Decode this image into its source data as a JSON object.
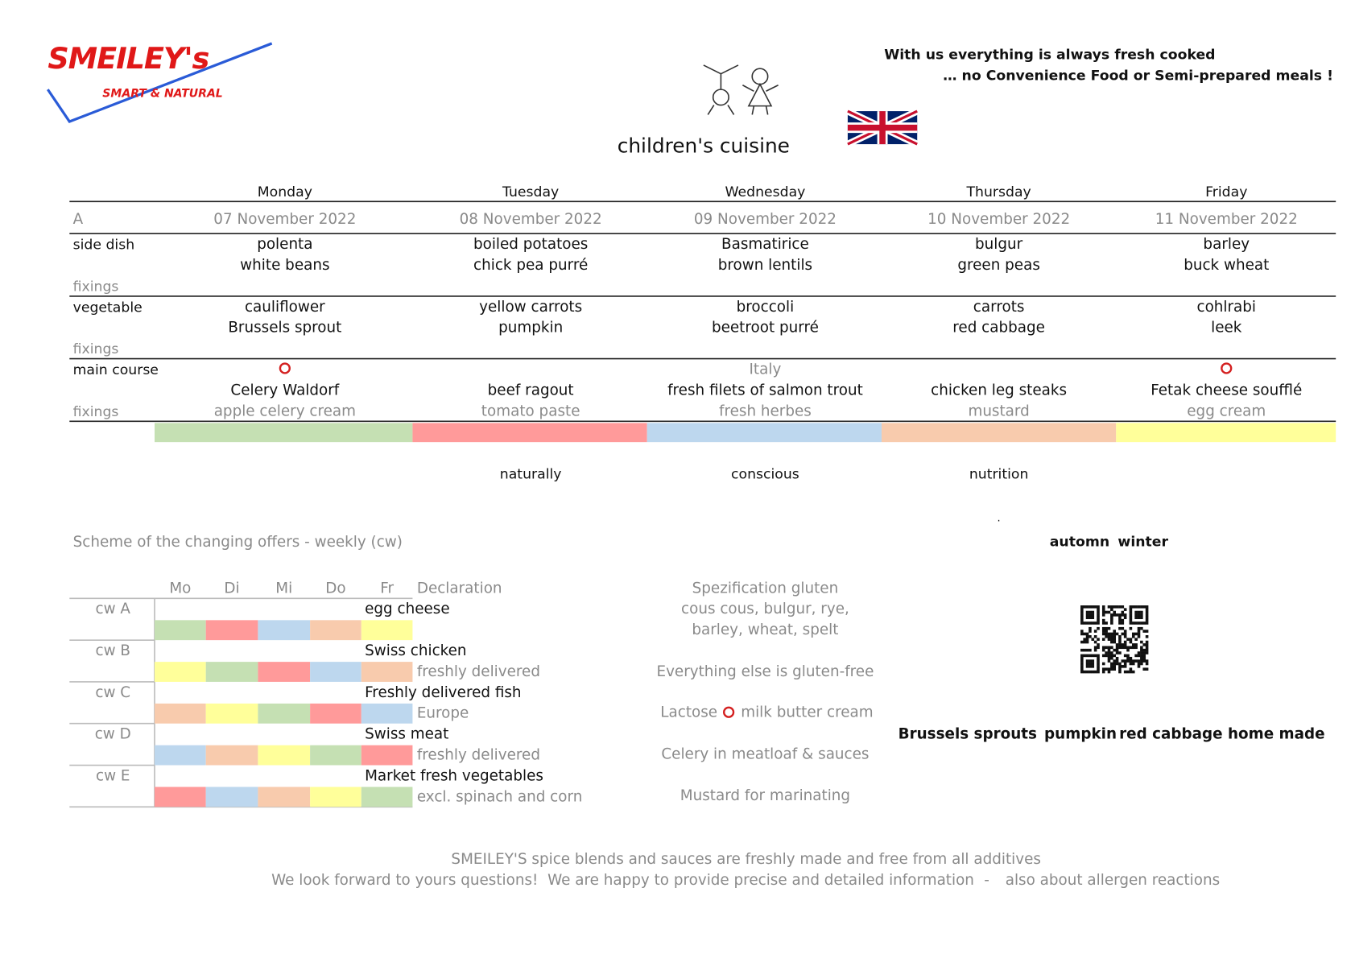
{
  "logo": {
    "brand": "SMEILEY's",
    "tagline": "SMART & NATURAL"
  },
  "slogan": [
    "With us everything is always fresh cooked",
    "… no Convenience Food or Semi-prepared meals !"
  ],
  "title": "children's cuisine",
  "menu": {
    "week": "A",
    "row_labels": {
      "side_dish": "side dish",
      "vegetable": "vegetable",
      "main_course": "main course",
      "fixings": "fixings"
    },
    "days": [
      {
        "day": "Monday",
        "date": "07 November 2022",
        "side_dish": [
          "polenta",
          "white beans"
        ],
        "vegetable": [
          "cauliflower",
          "Brussels sprout"
        ],
        "main_course": "Celery Waldorf",
        "main_fixings": "apple celery cream",
        "color": "#c5e0b3"
      },
      {
        "day": "Tuesday",
        "date": "08 November 2022",
        "side_dish": [
          "boiled potatoes",
          "chick pea purré"
        ],
        "vegetable": [
          "yellow carrots",
          "pumpkin"
        ],
        "main_course": "beef ragout",
        "main_fixings": "tomato paste",
        "color": "#ff9a9a"
      },
      {
        "day": "Wednesday",
        "date": "09 November 2022",
        "side_dish": [
          "Basmatirice",
          "brown lentils"
        ],
        "vegetable": [
          "broccoli",
          "beetroot purré"
        ],
        "origin": "Italy",
        "main_course": "fresh filets of salmon trout",
        "main_fixings": "fresh herbes",
        "color": "#bdd7ee"
      },
      {
        "day": "Thursday",
        "date": "10 November 2022",
        "side_dish": [
          "bulgur",
          "green peas"
        ],
        "vegetable": [
          "carrots",
          "red cabbage"
        ],
        "main_course": "chicken leg steaks",
        "main_fixings": "mustard",
        "color": "#f8cbad"
      },
      {
        "day": "Friday",
        "date": "11 November 2022",
        "side_dish": [
          "barley",
          "buck wheat"
        ],
        "vegetable": [
          "cohlrabi",
          "leek"
        ],
        "main_course": "Fetak cheese soufflé",
        "main_fixings": "egg cream",
        "color": "#ffff9a"
      }
    ]
  },
  "keywords": [
    "naturally",
    "conscious",
    "nutrition"
  ],
  "dot": ".",
  "scheme": {
    "title": "Scheme of the changing offers - weekly (cw)",
    "weekdays": [
      "Mo",
      "Di",
      "Mi",
      "Do",
      "Fr"
    ],
    "declaration": "Declaration",
    "rows": [
      {
        "label": "cw A",
        "title": "egg cheese",
        "colors": [
          "#c5e0b3",
          "#ff9a9a",
          "#bdd7ee",
          "#f8cbad",
          "#ffff9a"
        ]
      },
      {
        "label": "cw B",
        "title": "Swiss chicken",
        "note": "freshly delivered",
        "colors": [
          "#ffff9a",
          "#c5e0b3",
          "#ff9a9a",
          "#bdd7ee",
          "#f8cbad"
        ]
      },
      {
        "label": "cw C",
        "title": "Freshly delivered fish",
        "note": "Europe",
        "colors": [
          "#f8cbad",
          "#ffff9a",
          "#c5e0b3",
          "#ff9a9a",
          "#bdd7ee"
        ]
      },
      {
        "label": "cw D",
        "title": "Swiss meat",
        "note": "freshly delivered",
        "colors": [
          "#bdd7ee",
          "#f8cbad",
          "#ffff9a",
          "#c5e0b3",
          "#ff9a9a"
        ]
      },
      {
        "label": "cw E",
        "title": "Market fresh vegetables",
        "note": "excl. spinach and corn",
        "colors": [
          "#ff9a9a",
          "#bdd7ee",
          "#f8cbad",
          "#ffff9a",
          "#c5e0b3"
        ]
      }
    ]
  },
  "allergens": {
    "gluten": [
      "Spezification gluten",
      "cous cous, bulgur, rye,",
      "barley, wheat, spelt"
    ],
    "gluten_free": "Everything else is gluten-free",
    "lactose": "Lactose",
    "lactose_items": "milk butter cream",
    "celery": "Celery in meatloaf & sauces",
    "mustard": "Mustard for marinating"
  },
  "seasons": [
    "automn",
    "winter"
  ],
  "seasonal": [
    "Brussels sprouts",
    "pumpkin",
    "red cabbage home made"
  ],
  "footer": {
    "line1": "SMEILEY'S spice blends and sauces are freshly made and free from all additives",
    "line2": [
      "We look forward to yours questions!",
      "We are happy to provide precise and detailed information",
      "-",
      "also about allergen reactions"
    ]
  }
}
